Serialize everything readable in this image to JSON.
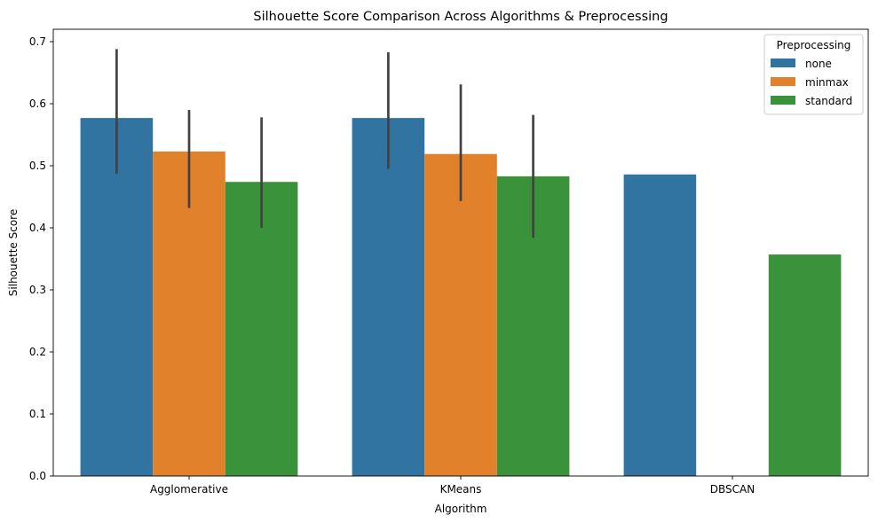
{
  "chart_data": {
    "type": "bar",
    "title": "Silhouette Score Comparison Across Algorithms & Preprocessing",
    "xlabel": "Algorithm",
    "ylabel": "Silhouette Score",
    "categories": [
      "Agglomerative",
      "KMeans",
      "DBSCAN"
    ],
    "ylim": [
      0,
      0.72
    ],
    "yticks": [
      0.0,
      0.1,
      0.2,
      0.3,
      0.4,
      0.5,
      0.6,
      0.7
    ],
    "ytick_labels": [
      "0.0",
      "0.1",
      "0.2",
      "0.3",
      "0.4",
      "0.5",
      "0.6",
      "0.7"
    ],
    "grid": false,
    "legend": {
      "title": "Preprocessing",
      "placement": "top-right"
    },
    "series": [
      {
        "name": "none",
        "color": "#3274a1",
        "values": [
          0.577,
          0.577,
          0.486
        ],
        "error_low": [
          0.487,
          0.495,
          null
        ],
        "error_high": [
          0.688,
          0.683,
          null
        ]
      },
      {
        "name": "minmax",
        "color": "#e1812c",
        "values": [
          0.523,
          0.519,
          null
        ],
        "error_low": [
          0.432,
          0.443,
          null
        ],
        "error_high": [
          0.59,
          0.631,
          null
        ]
      },
      {
        "name": "standard",
        "color": "#3a923a",
        "values": [
          0.474,
          0.483,
          0.357
        ],
        "error_low": [
          0.4,
          0.384,
          null
        ],
        "error_high": [
          0.578,
          0.582,
          null
        ]
      }
    ],
    "error_bar_color": "#424242"
  }
}
